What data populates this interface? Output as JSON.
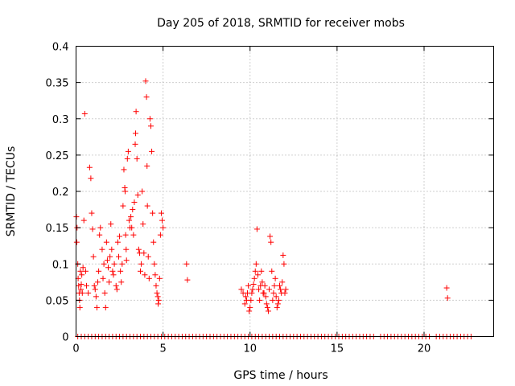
{
  "chart_data": {
    "type": "scatter",
    "title": "Day 205 of 2018, SRMTID for receiver mobs",
    "xlabel": "GPS time / hours",
    "ylabel": "SRMTID / TECUs",
    "xlim": [
      0,
      24
    ],
    "ylim": [
      0,
      0.4
    ],
    "grid": true,
    "marker": "+",
    "marker_color": "#ff0000",
    "x_ticks": [
      0,
      5,
      10,
      15,
      20
    ],
    "x_tick_labels": [
      "0",
      "5",
      "10",
      "15",
      "20"
    ],
    "y_ticks": [
      0,
      0.05,
      0.1,
      0.15,
      0.2,
      0.25,
      0.3,
      0.35,
      0.4
    ],
    "y_tick_labels": [
      "0",
      "0.05",
      "0.1",
      "0.15",
      "0.2",
      "0.25",
      "0.3",
      "0.35",
      "0.4"
    ],
    "series": [
      {
        "name": "SRMTID",
        "x": [
          0.02,
          0.04,
          0.06,
          0.1,
          0.12,
          0.15,
          0.18,
          0.2,
          0.22,
          0.25,
          0.28,
          0.3,
          0.33,
          0.36,
          0.4,
          0.45,
          0.5,
          0.55,
          0.6,
          0.7,
          0.78,
          0.85,
          0.9,
          0.95,
          1.0,
          1.05,
          1.1,
          1.15,
          1.2,
          1.25,
          1.3,
          1.35,
          1.4,
          1.5,
          1.55,
          1.6,
          1.65,
          1.7,
          1.75,
          1.8,
          1.85,
          1.9,
          1.95,
          2.0,
          2.05,
          2.1,
          2.15,
          2.2,
          2.3,
          2.35,
          2.4,
          2.45,
          2.5,
          2.55,
          2.6,
          2.65,
          2.7,
          2.75,
          2.8,
          2.82,
          2.85,
          2.88,
          2.9,
          2.95,
          3.0,
          3.05,
          3.1,
          3.15,
          3.2,
          3.25,
          3.3,
          3.35,
          3.4,
          3.42,
          3.45,
          3.5,
          3.55,
          3.6,
          3.65,
          3.7,
          3.75,
          3.8,
          3.85,
          3.9,
          3.95,
          4.0,
          4.05,
          4.08,
          4.1,
          4.15,
          4.2,
          4.25,
          4.3,
          4.35,
          4.4,
          4.45,
          4.5,
          4.55,
          4.6,
          4.65,
          4.7,
          4.72,
          4.75,
          4.8,
          4.85,
          4.9,
          4.95,
          5.0,
          6.35,
          6.4,
          9.5,
          9.6,
          9.7,
          9.75,
          9.8,
          9.85,
          9.9,
          9.95,
          10.0,
          10.05,
          10.1,
          10.15,
          10.2,
          10.25,
          10.3,
          10.35,
          10.4,
          10.45,
          10.5,
          10.55,
          10.6,
          10.65,
          10.7,
          10.75,
          10.8,
          10.85,
          10.9,
          10.95,
          11.0,
          11.05,
          11.1,
          11.15,
          11.2,
          11.25,
          11.3,
          11.35,
          11.4,
          11.45,
          11.5,
          11.55,
          11.6,
          11.65,
          11.7,
          11.75,
          11.8,
          11.85,
          11.9,
          11.95,
          12.0,
          12.05,
          21.3,
          21.35
        ],
        "y": [
          0.165,
          0.13,
          0.15,
          0.1,
          0.08,
          0.07,
          0.06,
          0.05,
          0.04,
          0.09,
          0.065,
          0.072,
          0.085,
          0.06,
          0.095,
          0.16,
          0.307,
          0.09,
          0.07,
          0.06,
          0.233,
          0.218,
          0.17,
          0.148,
          0.11,
          0.07,
          0.065,
          0.055,
          0.04,
          0.075,
          0.09,
          0.14,
          0.15,
          0.12,
          0.08,
          0.1,
          0.06,
          0.04,
          0.13,
          0.105,
          0.095,
          0.075,
          0.11,
          0.155,
          0.12,
          0.09,
          0.085,
          0.1,
          0.07,
          0.065,
          0.13,
          0.11,
          0.138,
          0.09,
          0.075,
          0.1,
          0.18,
          0.23,
          0.205,
          0.2,
          0.14,
          0.12,
          0.105,
          0.245,
          0.255,
          0.16,
          0.15,
          0.165,
          0.15,
          0.175,
          0.14,
          0.185,
          0.265,
          0.28,
          0.31,
          0.245,
          0.195,
          0.12,
          0.115,
          0.09,
          0.1,
          0.2,
          0.155,
          0.115,
          0.085,
          0.352,
          0.33,
          0.235,
          0.18,
          0.11,
          0.08,
          0.3,
          0.29,
          0.255,
          0.17,
          0.13,
          0.1,
          0.085,
          0.07,
          0.06,
          0.055,
          0.045,
          0.05,
          0.08,
          0.14,
          0.17,
          0.16,
          0.15,
          0.1,
          0.078,
          0.065,
          0.06,
          0.045,
          0.055,
          0.05,
          0.06,
          0.07,
          0.035,
          0.04,
          0.05,
          0.06,
          0.065,
          0.072,
          0.08,
          0.09,
          0.1,
          0.148,
          0.085,
          0.065,
          0.05,
          0.07,
          0.09,
          0.075,
          0.06,
          0.06,
          0.07,
          0.055,
          0.045,
          0.04,
          0.035,
          0.065,
          0.138,
          0.13,
          0.09,
          0.05,
          0.06,
          0.07,
          0.08,
          0.055,
          0.04,
          0.045,
          0.05,
          0.07,
          0.065,
          0.06,
          0.075,
          0.112,
          0.1,
          0.06,
          0.065,
          0.067,
          0.053
        ],
        "zero_x": [
          0.1,
          0.3,
          0.5,
          0.7,
          0.9,
          1.1,
          1.3,
          1.5,
          1.7,
          1.9,
          2.1,
          2.3,
          2.5,
          2.7,
          2.9,
          3.1,
          3.3,
          3.5,
          3.7,
          3.9,
          4.1,
          4.3,
          4.5,
          4.7,
          4.9,
          5.1,
          5.3,
          5.5,
          5.7,
          5.9,
          6.1,
          6.3,
          6.5,
          6.7,
          6.9,
          7.1,
          7.3,
          7.5,
          7.7,
          7.9,
          8.1,
          8.3,
          8.5,
          8.7,
          8.9,
          9.1,
          9.3,
          9.5,
          9.7,
          9.9,
          10.1,
          10.3,
          10.5,
          10.7,
          10.9,
          11.1,
          11.3,
          11.5,
          11.7,
          11.9,
          12.1,
          12.3,
          12.5,
          12.7,
          12.9,
          13.1,
          13.3,
          13.5,
          13.7,
          13.9,
          14.1,
          14.3,
          14.5,
          14.7,
          14.9,
          15.1,
          15.3,
          15.5,
          15.7,
          15.9,
          16.1,
          16.3,
          16.5,
          16.7,
          16.9,
          17.1,
          17.5,
          17.7,
          17.9,
          18.1,
          18.3,
          18.5,
          18.7,
          18.9,
          19.1,
          19.3,
          19.5,
          19.7,
          19.9,
          20.1,
          20.3,
          20.7,
          20.9,
          21.1,
          21.3,
          21.5,
          21.7,
          21.9,
          22.1,
          22.3,
          22.5,
          22.7
        ],
        "zero_y": 0
      }
    ]
  }
}
